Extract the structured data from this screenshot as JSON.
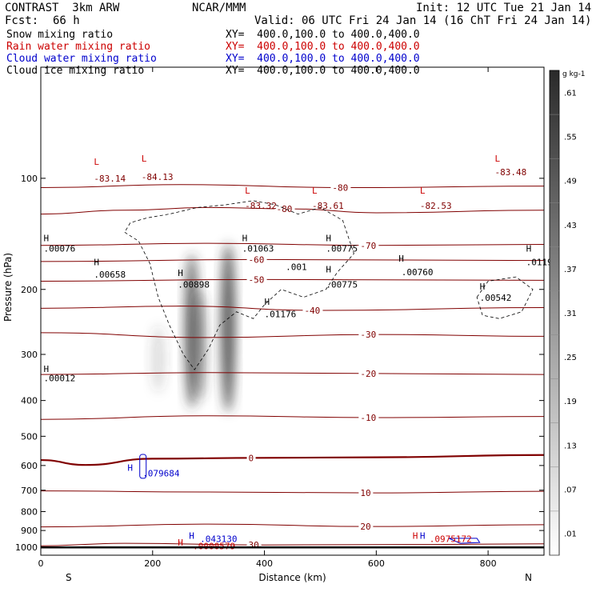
{
  "header": {
    "model": "CONTRAST  3km ARW",
    "center": "NCAR/MMM",
    "init": "Init: 12 UTC Tue 21 Jan 14",
    "fcst_label": "Fcst:",
    "fcst_value": "66 h",
    "valid": "Valid: 06 UTC Fri 24 Jan 14 (16 ChT Fri 24 Jan 14)"
  },
  "fields": [
    {
      "name": "Snow mixing ratio",
      "xy": "XY=  400.0,100.0 to 400.0,400.0",
      "color": "#000000"
    },
    {
      "name": "Rain water mixing ratio",
      "xy": "XY=  400.0,100.0 to 400.0,400.0",
      "color": "#cc0000"
    },
    {
      "name": "Cloud water mixing ratio",
      "xy": "XY=  400.0,100.0 to 400.0,400.0",
      "color": "#0000cc"
    },
    {
      "name": "Cloud ice mixing ratio",
      "xy": "XY=  400.0,100.0 to 400.0,400.0",
      "color": "#000000"
    }
  ],
  "colors": {
    "temperature": "#800000",
    "rain_label": "#cc0000",
    "cloud_water": "#0000cc",
    "snow": "#444444"
  },
  "chart_data": {
    "type": "heatmap",
    "xlabel": "Distance (km)",
    "ylabel": "Pressure (hPa)",
    "xlim": [
      0,
      900
    ],
    "ylim": [
      1050,
      50
    ],
    "x_ticks": [
      0,
      200,
      400,
      600,
      800
    ],
    "y_ticks": [
      100,
      200,
      300,
      400,
      500,
      600,
      700,
      800,
      900,
      1000
    ],
    "y_scale": "log",
    "left_end": "S",
    "right_end": "N",
    "colorbar": {
      "unit": "g kg-1",
      "levels": [
        ".01",
        ".07",
        ".13",
        ".19",
        ".25",
        ".31",
        ".37",
        ".43",
        ".49",
        ".55",
        ".61"
      ],
      "values": [
        0.01,
        0.07,
        0.13,
        0.19,
        0.25,
        0.31,
        0.37,
        0.43,
        0.49,
        0.55,
        0.61
      ]
    },
    "temperature_contours": [
      {
        "label": "-80",
        "values": [
          [
            0,
            125
          ],
          [
            150,
            122
          ],
          [
            300,
            120
          ],
          [
            450,
            121
          ],
          [
            600,
            124
          ],
          [
            900,
            122
          ]
        ]
      },
      {
        "label": "-80",
        "values": [
          [
            0,
            106
          ],
          [
            250,
            104
          ],
          [
            550,
            106
          ],
          [
            900,
            105
          ]
        ]
      },
      {
        "label": "-70",
        "values": [
          [
            0,
            152
          ],
          [
            300,
            150
          ],
          [
            600,
            152
          ],
          [
            900,
            151
          ]
        ]
      },
      {
        "label": "-60",
        "values": [
          [
            0,
            168
          ],
          [
            400,
            166
          ],
          [
            900,
            167
          ]
        ]
      },
      {
        "label": "-50",
        "values": [
          [
            0,
            190
          ],
          [
            400,
            188
          ],
          [
            900,
            189
          ]
        ]
      },
      {
        "label": "-40",
        "values": [
          [
            0,
            225
          ],
          [
            250,
            222
          ],
          [
            500,
            228
          ],
          [
            900,
            224
          ]
        ]
      },
      {
        "label": "-30",
        "values": [
          [
            0,
            262
          ],
          [
            300,
            270
          ],
          [
            600,
            265
          ],
          [
            900,
            268
          ]
        ]
      },
      {
        "label": "-20",
        "values": [
          [
            0,
            340
          ],
          [
            300,
            336
          ],
          [
            600,
            338
          ],
          [
            900,
            340
          ]
        ]
      },
      {
        "label": "-10",
        "values": [
          [
            0,
            450
          ],
          [
            300,
            440
          ],
          [
            600,
            445
          ],
          [
            900,
            442
          ]
        ]
      },
      {
        "label": "0",
        "values": [
          [
            0,
            580
          ],
          [
            80,
            598
          ],
          [
            200,
            575
          ],
          [
            400,
            572
          ],
          [
            600,
            570
          ],
          [
            900,
            562
          ]
        ]
      },
      {
        "label": "10",
        "values": [
          [
            0,
            703
          ],
          [
            300,
            708
          ],
          [
            600,
            712
          ],
          [
            900,
            705
          ]
        ]
      },
      {
        "label": "20",
        "values": [
          [
            0,
            880
          ],
          [
            300,
            865
          ],
          [
            600,
            878
          ],
          [
            900,
            868
          ]
        ]
      },
      {
        "label": "30",
        "values": [
          [
            0,
            990
          ],
          [
            150,
            975
          ],
          [
            400,
            985
          ],
          [
            700,
            982
          ],
          [
            900,
            978
          ]
        ]
      }
    ],
    "snow_cores": [
      {
        "x": 270,
        "p_top": 160,
        "p_bottom": 420,
        "peak": 0.55
      },
      {
        "x": 335,
        "p_top": 150,
        "p_bottom": 430,
        "peak": 0.61
      },
      {
        "x": 285,
        "p_top": 200,
        "p_bottom": 400,
        "peak": 0.31
      },
      {
        "x": 210,
        "p_top": 250,
        "p_bottom": 380,
        "peak": 0.13
      }
    ],
    "annotations": [
      {
        "text": "L",
        "x": 95,
        "p": 92,
        "color": "#cc0000"
      },
      {
        "text": "-83.14",
        "x": 95,
        "p": 102,
        "color": "#800000"
      },
      {
        "text": "L",
        "x": 180,
        "p": 90,
        "color": "#cc0000"
      },
      {
        "text": "-84.13",
        "x": 180,
        "p": 101,
        "color": "#800000"
      },
      {
        "text": "L",
        "x": 365,
        "p": 110,
        "color": "#cc0000"
      },
      {
        "text": "-83.32",
        "x": 365,
        "p": 121,
        "color": "#800000"
      },
      {
        "text": "L",
        "x": 485,
        "p": 110,
        "color": "#cc0000"
      },
      {
        "text": "-83.61",
        "x": 485,
        "p": 121,
        "color": "#800000"
      },
      {
        "text": "L",
        "x": 678,
        "p": 110,
        "color": "#cc0000"
      },
      {
        "text": "-82.53",
        "x": 678,
        "p": 121,
        "color": "#800000"
      },
      {
        "text": "L",
        "x": 812,
        "p": 90,
        "color": "#cc0000"
      },
      {
        "text": "-83.48",
        "x": 812,
        "p": 98,
        "color": "#800000"
      },
      {
        "text": "H",
        "x": 5,
        "p": 148,
        "color": "#000000"
      },
      {
        "text": ".00076",
        "x": 5,
        "p": 158,
        "color": "#000000"
      },
      {
        "text": "H",
        "x": 95,
        "p": 172,
        "color": "#000000"
      },
      {
        "text": ".00658",
        "x": 95,
        "p": 186,
        "color": "#000000"
      },
      {
        "text": "H",
        "x": 245,
        "p": 184,
        "color": "#000000"
      },
      {
        "text": ".00898",
        "x": 245,
        "p": 198,
        "color": "#000000"
      },
      {
        "text": "H",
        "x": 360,
        "p": 148,
        "color": "#000000"
      },
      {
        "text": ".01063",
        "x": 360,
        "p": 158,
        "color": "#000000"
      },
      {
        "text": ".001",
        "x": 438,
        "p": 177,
        "color": "#000000"
      },
      {
        "text": "H",
        "x": 510,
        "p": 148,
        "color": "#000000"
      },
      {
        "text": ".00775",
        "x": 510,
        "p": 158,
        "color": "#000000"
      },
      {
        "text": "H",
        "x": 510,
        "p": 180,
        "color": "#000000"
      },
      {
        "text": ".00775",
        "x": 510,
        "p": 198,
        "color": "#000000"
      },
      {
        "text": "H",
        "x": 640,
        "p": 168,
        "color": "#000000"
      },
      {
        "text": ".00760",
        "x": 645,
        "p": 183,
        "color": "#000000"
      },
      {
        "text": "H",
        "x": 785,
        "p": 200,
        "color": "#000000"
      },
      {
        "text": ".00542",
        "x": 785,
        "p": 215,
        "color": "#000000"
      },
      {
        "text": "H",
        "x": 868,
        "p": 158,
        "color": "#000000"
      },
      {
        "text": ".0119",
        "x": 868,
        "p": 172,
        "color": "#000000"
      },
      {
        "text": "H",
        "x": 400,
        "p": 220,
        "color": "#000000"
      },
      {
        "text": ".01176",
        "x": 400,
        "p": 238,
        "color": "#000000"
      },
      {
        "text": "H",
        "x": 5,
        "p": 335,
        "color": "#000000"
      },
      {
        "text": ".00012",
        "x": 5,
        "p": 355,
        "color": "#000000"
      },
      {
        "text": "H",
        "x": 155,
        "p": 620,
        "color": "#0000cc"
      },
      {
        "text": ".079684",
        "x": 182,
        "p": 642,
        "color": "#0000cc"
      },
      {
        "text": "H",
        "x": 265,
        "p": 948,
        "color": "#0000cc"
      },
      {
        "text": ".043130",
        "x": 285,
        "p": 968,
        "color": "#0000cc"
      },
      {
        "text": "H",
        "x": 245,
        "p": 990,
        "color": "#cc0000"
      },
      {
        "text": ".0000579",
        "x": 272,
        "p": 1012,
        "color": "#cc0000"
      },
      {
        "text": "H",
        "x": 665,
        "p": 948,
        "color": "#cc0000"
      },
      {
        "text": "H",
        "x": 678,
        "p": 948,
        "color": "#0000cc"
      },
      {
        "text": ".0975172",
        "x": 695,
        "p": 968,
        "color": "#cc0000"
      }
    ]
  }
}
